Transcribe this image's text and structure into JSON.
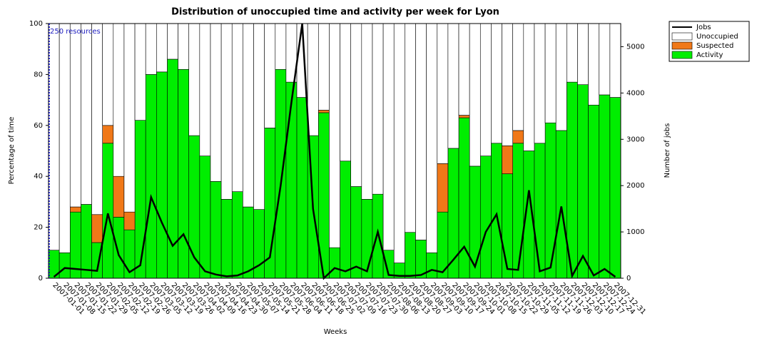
{
  "chart_data": {
    "type": "bar",
    "title": "Distribution of unoccupied time and activity per week for Lyon",
    "xlabel": "Weeks",
    "ylabel": "Percentage of time",
    "y2label": "Number of jobs",
    "annotation": "250 resources",
    "stacked": true,
    "categories": [
      "2007-01-01",
      "2007-01-08",
      "2007-01-15",
      "2007-01-22",
      "2007-01-29",
      "2007-02-05",
      "2007-02-12",
      "2007-02-19",
      "2007-02-26",
      "2007-03-05",
      "2007-03-12",
      "2007-03-19",
      "2007-03-26",
      "2007-04-02",
      "2007-04-09",
      "2007-04-16",
      "2007-04-23",
      "2007-04-30",
      "2007-05-07",
      "2007-05-14",
      "2007-05-21",
      "2007-05-28",
      "2007-06-04",
      "2007-06-11",
      "2007-06-18",
      "2007-06-25",
      "2007-07-02",
      "2007-07-09",
      "2007-07-16",
      "2007-07-23",
      "2007-07-30",
      "2007-08-06",
      "2007-08-13",
      "2007-08-20",
      "2007-08-27",
      "2007-09-03",
      "2007-09-10",
      "2007-09-17",
      "2007-09-24",
      "2007-10-01",
      "2007-10-08",
      "2007-10-15",
      "2007-10-22",
      "2007-10-29",
      "2007-11-05",
      "2007-11-12",
      "2007-11-19",
      "2007-11-26",
      "2007-12-03",
      "2007-12-10",
      "2007-12-17",
      "2007-12-24",
      "2007-12-31"
    ],
    "series": [
      {
        "name": "Jobs",
        "type": "line",
        "axis": "y2",
        "color": "#000000",
        "values": [
          30,
          220,
          200,
          180,
          160,
          1400,
          500,
          130,
          280,
          1750,
          1200,
          700,
          950,
          450,
          150,
          80,
          40,
          60,
          150,
          280,
          450,
          2000,
          3800,
          5500,
          1500,
          0,
          220,
          150,
          250,
          150,
          1000,
          70,
          50,
          50,
          70,
          180,
          130,
          400,
          680,
          250,
          1000,
          1380,
          200,
          180,
          1900,
          150,
          230,
          1550,
          50,
          480,
          60,
          200,
          30
        ]
      },
      {
        "name": "Unoccupied",
        "type": "bar",
        "color": "#ffffff",
        "values": [
          89,
          90,
          72,
          71,
          75,
          40,
          60,
          74,
          38,
          20,
          19,
          14,
          18,
          44,
          52,
          62,
          69,
          66,
          72,
          73,
          41,
          18,
          23,
          29,
          44,
          34,
          88,
          54,
          64,
          69,
          67,
          89,
          94,
          82,
          85,
          90,
          55,
          49,
          36,
          56,
          52,
          47,
          48,
          42,
          50,
          47,
          39,
          42,
          23,
          24,
          32,
          28,
          29
        ]
      },
      {
        "name": "Suspected",
        "type": "bar",
        "color": "#f07818",
        "values": [
          0,
          0,
          2,
          0,
          11,
          7,
          16,
          7,
          0,
          0,
          0,
          0,
          0,
          0,
          0,
          0,
          0,
          0,
          0,
          0,
          0,
          0,
          0,
          0,
          0,
          1,
          0,
          0,
          0,
          0,
          0,
          0,
          0,
          0,
          0,
          0,
          19,
          0,
          1,
          0,
          0,
          0,
          11,
          5,
          0,
          0,
          0,
          0,
          0,
          0,
          0,
          0,
          0
        ]
      },
      {
        "name": "Activity",
        "type": "bar",
        "color": "#00ee00",
        "values": [
          11,
          10,
          26,
          29,
          14,
          53,
          24,
          19,
          62,
          80,
          81,
          86,
          82,
          56,
          48,
          38,
          31,
          34,
          28,
          27,
          59,
          82,
          77,
          71,
          56,
          65,
          12,
          46,
          36,
          31,
          33,
          11,
          6,
          18,
          15,
          10,
          26,
          51,
          63,
          44,
          48,
          53,
          41,
          53,
          50,
          53,
          61,
          58,
          77,
          76,
          68,
          72,
          71
        ]
      }
    ],
    "ylim": [
      0,
      100
    ],
    "yticks": [
      0,
      20,
      40,
      60,
      80,
      100
    ],
    "y2lim": [
      0,
      5500
    ],
    "y2ticks": [
      0,
      1000,
      2000,
      3000,
      4000,
      5000
    ],
    "legend": "outside-top-right"
  }
}
